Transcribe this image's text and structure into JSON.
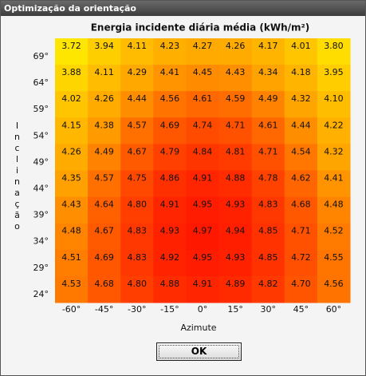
{
  "window": {
    "title": "Optimização da orientação",
    "button": "OK"
  },
  "chart_data": {
    "type": "heatmap",
    "title": "Energia incidente diária média (kWh/m²)",
    "x_label": "Azimute",
    "y_label": "Inclinação",
    "x_categories": [
      "-60°",
      "-45°",
      "-30°",
      "-15°",
      "0°",
      "15°",
      "30°",
      "45°",
      "60°"
    ],
    "y_categories": [
      "69°",
      "64°",
      "59°",
      "54°",
      "49°",
      "44°",
      "39°",
      "34°",
      "29°",
      "24°"
    ],
    "values": [
      [
        3.72,
        3.94,
        4.11,
        4.23,
        4.27,
        4.26,
        4.17,
        4.01,
        3.8
      ],
      [
        3.88,
        4.11,
        4.29,
        4.41,
        4.45,
        4.43,
        4.34,
        4.18,
        3.95
      ],
      [
        4.02,
        4.26,
        4.44,
        4.56,
        4.61,
        4.59,
        4.49,
        4.32,
        4.1
      ],
      [
        4.15,
        4.38,
        4.57,
        4.69,
        4.74,
        4.71,
        4.61,
        4.44,
        4.22
      ],
      [
        4.26,
        4.49,
        4.67,
        4.79,
        4.84,
        4.81,
        4.71,
        4.54,
        4.32
      ],
      [
        4.35,
        4.57,
        4.75,
        4.86,
        4.91,
        4.88,
        4.78,
        4.62,
        4.41
      ],
      [
        4.43,
        4.64,
        4.8,
        4.91,
        4.95,
        4.93,
        4.83,
        4.68,
        4.48
      ],
      [
        4.48,
        4.67,
        4.83,
        4.93,
        4.97,
        4.94,
        4.85,
        4.71,
        4.52
      ],
      [
        4.51,
        4.69,
        4.83,
        4.92,
        4.95,
        4.93,
        4.85,
        4.72,
        4.55
      ],
      [
        4.53,
        4.68,
        4.8,
        4.88,
        4.91,
        4.89,
        4.82,
        4.7,
        4.56
      ]
    ],
    "value_labels": [
      [
        "3.72",
        "3.94",
        "4.11",
        "4.23",
        "4.27",
        "4.26",
        "4.17",
        "4.01",
        "3.80"
      ],
      [
        "3.88",
        "4.11",
        "4.29",
        "4.41",
        "4.45",
        "4.43",
        "4.34",
        "4.18",
        "3.95"
      ],
      [
        "4.02",
        "4.26",
        "4.44",
        "4.56",
        "4.61",
        "4.59",
        "4.49",
        "4.32",
        "4.10"
      ],
      [
        "4.15",
        "4.38",
        "4.57",
        "4.69",
        "4.74",
        "4.71",
        "4.61",
        "4.44",
        "4.22"
      ],
      [
        "4.26",
        "4.49",
        "4.67",
        "4.79",
        "4.84",
        "4.81",
        "4.71",
        "4.54",
        "4.32"
      ],
      [
        "4.35",
        "4.57",
        "4.75",
        "4.86",
        "4.91",
        "4.88",
        "4.78",
        "4.62",
        "4.41"
      ],
      [
        "4.43",
        "4.64",
        "4.80",
        "4.91",
        "4.95",
        "4.93",
        "4.83",
        "4.68",
        "4.48"
      ],
      [
        "4.48",
        "4.67",
        "4.83",
        "4.93",
        "4.97",
        "4.94",
        "4.85",
        "4.71",
        "4.52"
      ],
      [
        "4.51",
        "4.69",
        "4.83",
        "4.92",
        "4.95",
        "4.93",
        "4.85",
        "4.72",
        "4.55"
      ],
      [
        "4.53",
        "4.68",
        "4.80",
        "4.88",
        "4.91",
        "4.89",
        "4.82",
        "4.70",
        "4.56"
      ]
    ],
    "colors": [
      "#ffe600",
      "#ffa200",
      "#ff1800"
    ]
  }
}
